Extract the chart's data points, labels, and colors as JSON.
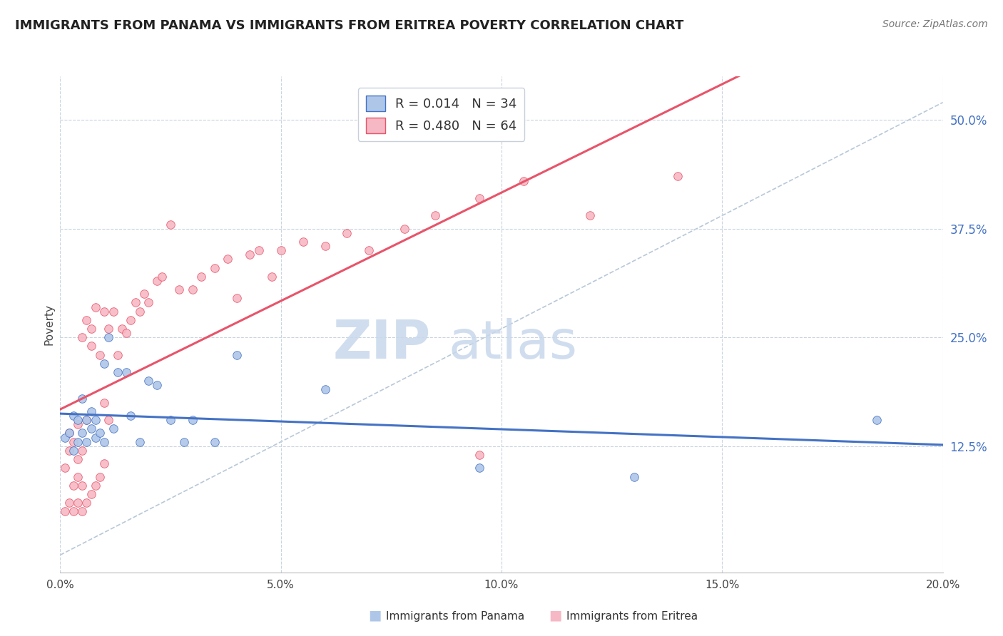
{
  "title": "IMMIGRANTS FROM PANAMA VS IMMIGRANTS FROM ERITREA POVERTY CORRELATION CHART",
  "source": "Source: ZipAtlas.com",
  "xlabel_left": "Immigrants from Panama",
  "xlabel_right": "Immigrants from Eritrea",
  "ylabel": "Poverty",
  "xlim": [
    0.0,
    0.2
  ],
  "ylim": [
    -0.02,
    0.55
  ],
  "yticks": [
    0.125,
    0.25,
    0.375,
    0.5
  ],
  "ytick_labels": [
    "12.5%",
    "25.0%",
    "37.5%",
    "50.0%"
  ],
  "xticks": [
    0.0,
    0.05,
    0.1,
    0.15,
    0.2
  ],
  "xtick_labels": [
    "0.0%",
    "5.0%",
    "10.0%",
    "15.0%",
    "20.0%"
  ],
  "legend_R_panama": "0.014",
  "legend_N_panama": "34",
  "legend_R_eritrea": "0.480",
  "legend_N_eritrea": "64",
  "blue_scatter_color": "#aec6e8",
  "pink_scatter_color": "#f5b8c4",
  "trend_blue": "#4472c4",
  "trend_pink": "#e8546a",
  "ref_line_color": "#b8c8d8",
  "watermark_zip": "ZIP",
  "watermark_atlas": "atlas",
  "background_color": "#ffffff",
  "grid_color": "#c8d4e0",
  "panama_scatter_x": [
    0.001,
    0.002,
    0.003,
    0.003,
    0.004,
    0.004,
    0.005,
    0.005,
    0.006,
    0.006,
    0.007,
    0.007,
    0.008,
    0.008,
    0.009,
    0.01,
    0.01,
    0.011,
    0.012,
    0.013,
    0.015,
    0.016,
    0.018,
    0.02,
    0.022,
    0.025,
    0.028,
    0.03,
    0.035,
    0.04,
    0.06,
    0.095,
    0.13,
    0.185
  ],
  "panama_scatter_y": [
    0.135,
    0.14,
    0.12,
    0.16,
    0.13,
    0.155,
    0.14,
    0.18,
    0.13,
    0.155,
    0.145,
    0.165,
    0.135,
    0.155,
    0.14,
    0.13,
    0.22,
    0.25,
    0.145,
    0.21,
    0.21,
    0.16,
    0.13,
    0.2,
    0.195,
    0.155,
    0.13,
    0.155,
    0.13,
    0.23,
    0.19,
    0.1,
    0.09,
    0.155
  ],
  "eritrea_scatter_x": [
    0.001,
    0.001,
    0.002,
    0.002,
    0.002,
    0.003,
    0.003,
    0.003,
    0.004,
    0.004,
    0.004,
    0.004,
    0.005,
    0.005,
    0.005,
    0.005,
    0.006,
    0.006,
    0.006,
    0.007,
    0.007,
    0.007,
    0.008,
    0.008,
    0.009,
    0.009,
    0.01,
    0.01,
    0.01,
    0.011,
    0.011,
    0.012,
    0.013,
    0.014,
    0.015,
    0.016,
    0.017,
    0.018,
    0.019,
    0.02,
    0.022,
    0.023,
    0.025,
    0.027,
    0.03,
    0.032,
    0.035,
    0.038,
    0.04,
    0.043,
    0.045,
    0.048,
    0.05,
    0.055,
    0.06,
    0.065,
    0.07,
    0.078,
    0.085,
    0.095,
    0.105,
    0.12,
    0.14,
    0.095
  ],
  "eritrea_scatter_y": [
    0.1,
    0.05,
    0.12,
    0.06,
    0.14,
    0.05,
    0.08,
    0.13,
    0.06,
    0.09,
    0.11,
    0.15,
    0.05,
    0.08,
    0.12,
    0.25,
    0.06,
    0.155,
    0.27,
    0.07,
    0.24,
    0.26,
    0.08,
    0.285,
    0.09,
    0.23,
    0.105,
    0.175,
    0.28,
    0.155,
    0.26,
    0.28,
    0.23,
    0.26,
    0.255,
    0.27,
    0.29,
    0.28,
    0.3,
    0.29,
    0.315,
    0.32,
    0.38,
    0.305,
    0.305,
    0.32,
    0.33,
    0.34,
    0.295,
    0.345,
    0.35,
    0.32,
    0.35,
    0.36,
    0.355,
    0.37,
    0.35,
    0.375,
    0.39,
    0.41,
    0.43,
    0.39,
    0.435,
    0.115
  ]
}
